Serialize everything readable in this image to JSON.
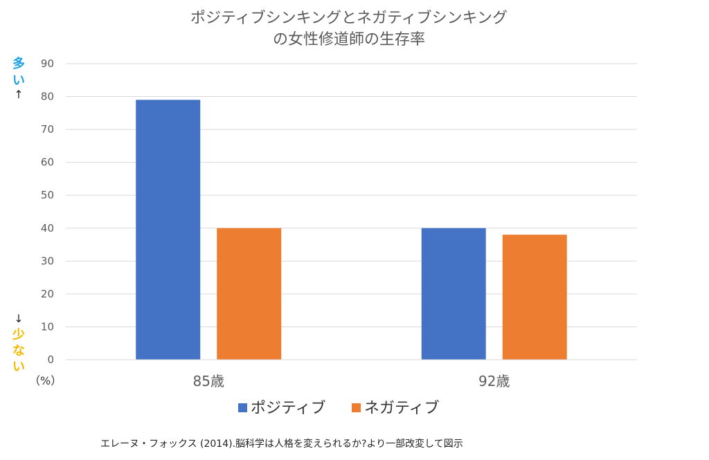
{
  "chart_data": {
    "type": "bar",
    "title_lines": [
      "ポジティブシンキングとネガティブシンキング",
      "の女性修道師の生存率"
    ],
    "categories": [
      "85歳",
      "92歳"
    ],
    "series": [
      {
        "name": "ポジティブ",
        "color": "#4472C4",
        "values": [
          79,
          40
        ]
      },
      {
        "name": "ネガティブ",
        "color": "#ED7D31",
        "values": [
          40,
          38
        ]
      }
    ],
    "ylim": [
      0,
      90
    ],
    "yticks": [
      "0",
      "10",
      "20",
      "30",
      "40",
      "50",
      "60",
      "70",
      "80",
      "90"
    ],
    "ytick_values": [
      0,
      10,
      20,
      30,
      40,
      50,
      60,
      70,
      80,
      90
    ],
    "unit_label": "（%）",
    "grid": true,
    "legend_position": "bottom",
    "side_labels": {
      "top_chars": [
        "多",
        "い"
      ],
      "top_color": "#1BA1E2",
      "top_arrow": "↑",
      "bottom_arrow": "↓",
      "bottom_chars": [
        "少",
        "な",
        "い"
      ],
      "bottom_color": "#F5B800"
    },
    "source": "エレーヌ・フォックス (2014).脳科学は人格を変えられるか?より一部改変して図示"
  }
}
